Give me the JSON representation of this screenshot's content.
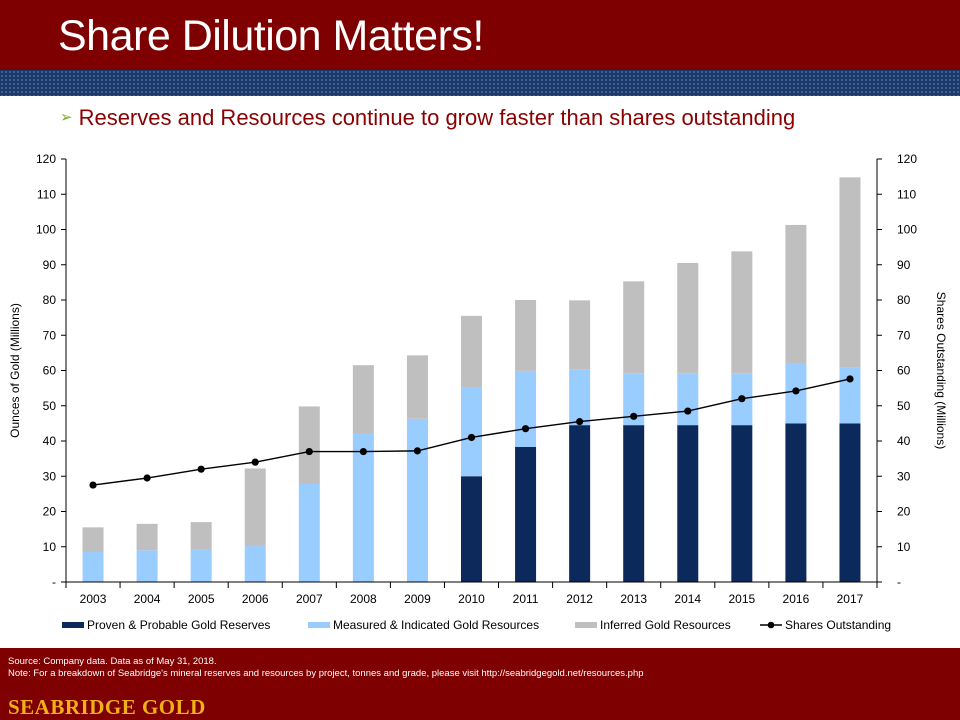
{
  "slide": {
    "title": "Share Dilution Matters!",
    "subtitle_bullet": "➢",
    "subtitle": "Reserves and Resources continue to grow faster than shares outstanding"
  },
  "footer": {
    "source": "Source: Company data.  Data as of May 31, 2018.",
    "note": "Note: For a breakdown of Seabridge's mineral reserves and resources by project, tonnes and grade, please visit http://seabridgegold.net/resources.php",
    "logo_text": "SEABRIDGE GOLD"
  },
  "colors": {
    "header_bg": "#7f0000",
    "band_bg": "#1a3a6e",
    "logo_gold": "#f0b018",
    "subtitle": "#8b0000",
    "bullet": "#7aa834"
  },
  "chart_data": {
    "type": "bar",
    "stacked": true,
    "categories": [
      "2003",
      "2004",
      "2005",
      "2006",
      "2007",
      "2008",
      "2009",
      "2010",
      "2011",
      "2012",
      "2013",
      "2014",
      "2015",
      "2016",
      "2017"
    ],
    "ylabel": "Ounces of Gold (Millions)",
    "ylabel_right": "Shares Outstanding (Millions)",
    "ylim": [
      0,
      120
    ],
    "ylim_right": [
      0,
      120
    ],
    "yticks": [
      "-",
      "10",
      "20",
      "30",
      "40",
      "50",
      "60",
      "70",
      "80",
      "90",
      "100",
      "110",
      "120"
    ],
    "grid": false,
    "legend_position": "bottom",
    "series": [
      {
        "name": "Proven & Probable Gold Reserves",
        "type": "bar",
        "color": "#0b2a5b",
        "values": [
          0,
          0,
          0,
          0,
          0,
          0,
          0,
          30.0,
          38.3,
          44.5,
          44.5,
          44.5,
          44.5,
          45.0,
          45.0
        ]
      },
      {
        "name": "Measured & Indicated Gold Resources",
        "type": "bar",
        "color": "#99ccff",
        "values": [
          8.5,
          9.0,
          9.2,
          10.2,
          27.8,
          42.0,
          46.3,
          25.2,
          21.6,
          15.7,
          14.7,
          14.7,
          14.7,
          17.0,
          15.8
        ]
      },
      {
        "name": "Inferred Gold Resources",
        "type": "bar",
        "color": "#bfbfbf",
        "values": [
          7.0,
          7.5,
          7.8,
          22.0,
          22.0,
          19.5,
          18.0,
          20.3,
          20.1,
          19.7,
          26.1,
          31.3,
          34.6,
          39.3,
          54.0
        ]
      },
      {
        "name": "Shares Outstanding",
        "type": "line",
        "axis": "right",
        "color": "#000000",
        "values": [
          27.5,
          29.5,
          32.0,
          34.0,
          37.0,
          37.0,
          37.2,
          41.0,
          43.5,
          45.5,
          47.0,
          48.5,
          52.0,
          54.2,
          57.6
        ]
      }
    ]
  }
}
